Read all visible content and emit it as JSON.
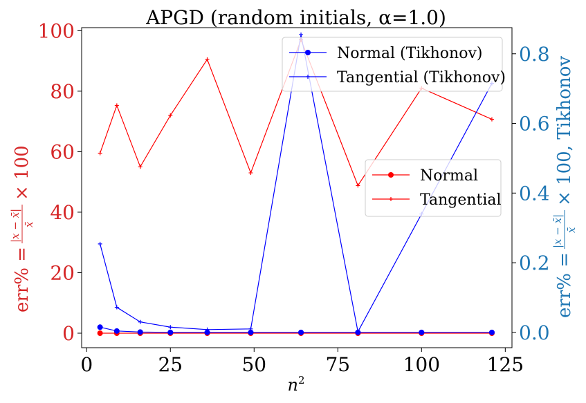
{
  "chart_data": {
    "type": "line",
    "title": "APGD (random initials, α=1.0)",
    "xlabel": "n²",
    "ylabel_left": "err% = |x − x̄| / x̄ × 100",
    "ylabel_right": "err% = |x − x̄| / x̄ × 100, Tikhonov",
    "x": [
      4,
      9,
      16,
      25,
      36,
      49,
      64,
      81,
      100,
      121
    ],
    "xlim": [
      -1.5,
      127
    ],
    "xticks": [
      0,
      25,
      50,
      75,
      100,
      125
    ],
    "left_axis": {
      "ylim": [
        -4.8,
        101
      ],
      "yticks": [
        0,
        20,
        40,
        60,
        80,
        100
      ],
      "color": "#d62728"
    },
    "right_axis": {
      "ylim": [
        -0.044,
        0.875
      ],
      "yticks": [
        0.0,
        0.2,
        0.4,
        0.6,
        0.8
      ],
      "color": "#1f77b4"
    },
    "series": [
      {
        "name": "Normal",
        "axis": "left",
        "color": "#ff0000",
        "marker": "circle",
        "values": [
          0.0,
          0.0,
          0.0,
          0.0,
          0.0,
          0.0,
          0.0,
          0.0,
          0.0,
          0.0
        ]
      },
      {
        "name": "Tangential",
        "axis": "left",
        "color": "#ff0000",
        "marker": "plus",
        "values": [
          59.5,
          75.3,
          55.0,
          72.0,
          90.5,
          53.0,
          97.0,
          48.8,
          81.0,
          70.7
        ]
      },
      {
        "name": "Normal (Tikhonov)",
        "axis": "right",
        "color": "#0000ff",
        "marker": "circle",
        "values": [
          0.015,
          0.004,
          0.001,
          0.0,
          0.0,
          0.0,
          0.0,
          0.0,
          0.0,
          0.0
        ]
      },
      {
        "name": "Tangential (Tikhonov)",
        "axis": "right",
        "color": "#0000ff",
        "marker": "plus",
        "values": [
          0.254,
          0.072,
          0.03,
          0.015,
          0.008,
          0.01,
          0.855,
          0.002,
          0.34,
          0.715
        ]
      }
    ],
    "legends": [
      {
        "position": "upper-right",
        "entries": [
          "Normal (Tikhonov)",
          "Tangential (Tikhonov)"
        ]
      },
      {
        "position": "center-right",
        "entries": [
          "Normal",
          "Tangential"
        ]
      }
    ]
  }
}
